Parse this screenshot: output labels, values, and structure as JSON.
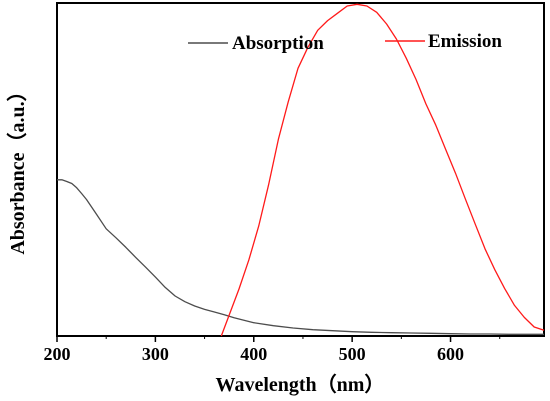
{
  "chart_data": {
    "type": "line",
    "xlabel": "Wavelength（nm）",
    "ylabel": "Absorbance（a.u.）",
    "xlim": [
      200,
      695
    ],
    "ylim": [
      0,
      1.0
    ],
    "x_ticks": [
      200,
      300,
      400,
      500,
      600
    ],
    "y_ticks_shown": false,
    "grid": false,
    "legend_position": "top-right",
    "colors": {
      "Absorption": "#4d4d4d",
      "Emission": "#ff1a1a"
    },
    "series": [
      {
        "name": "Absorption",
        "x": [
          200,
          205,
          210,
          215,
          220,
          225,
          230,
          240,
          250,
          260,
          270,
          280,
          290,
          300,
          310,
          320,
          330,
          340,
          350,
          360,
          370,
          380,
          390,
          400,
          420,
          440,
          460,
          480,
          500,
          520,
          540,
          560,
          580,
          600,
          620,
          640,
          660,
          680,
          695
        ],
        "values": [
          0.469,
          0.469,
          0.464,
          0.458,
          0.445,
          0.428,
          0.41,
          0.366,
          0.322,
          0.295,
          0.266,
          0.236,
          0.207,
          0.177,
          0.146,
          0.12,
          0.103,
          0.09,
          0.08,
          0.072,
          0.064,
          0.055,
          0.047,
          0.04,
          0.031,
          0.024,
          0.019,
          0.016,
          0.013,
          0.011,
          0.01,
          0.009,
          0.008,
          0.007,
          0.006,
          0.006,
          0.005,
          0.005,
          0.005
        ]
      },
      {
        "name": "Emission",
        "x": [
          367,
          375,
          385,
          395,
          405,
          415,
          425,
          435,
          445,
          455,
          465,
          475,
          485,
          495,
          505,
          515,
          525,
          535,
          545,
          555,
          565,
          575,
          585,
          595,
          605,
          615,
          625,
          635,
          645,
          655,
          665,
          675,
          685,
          695
        ],
        "values": [
          0.0,
          0.063,
          0.141,
          0.228,
          0.33,
          0.453,
          0.591,
          0.703,
          0.804,
          0.867,
          0.918,
          0.947,
          0.969,
          0.991,
          0.996,
          0.991,
          0.972,
          0.937,
          0.892,
          0.834,
          0.77,
          0.697,
          0.633,
          0.561,
          0.489,
          0.412,
          0.337,
          0.262,
          0.199,
          0.143,
          0.092,
          0.056,
          0.027,
          0.017
        ]
      }
    ]
  }
}
